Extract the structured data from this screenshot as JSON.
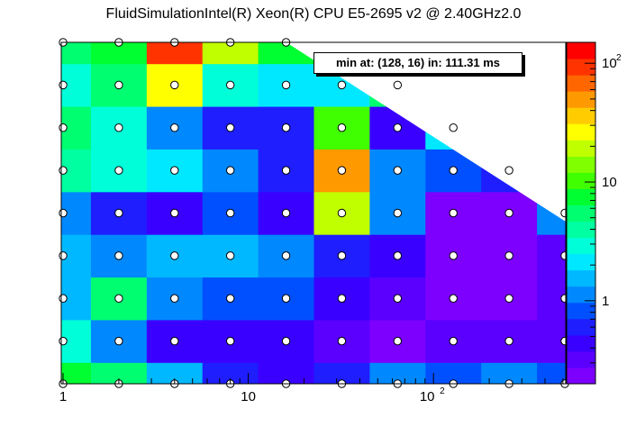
{
  "chart_data": {
    "type": "heatmap",
    "title": "FluidSimulationIntel(R) Xeon(R) CPU E5-2695 v2 @ 2.40GHz2.0",
    "xlabel": "",
    "ylabel": "",
    "x_scale": "log",
    "x_ticks": [
      "1",
      "10",
      "10^2"
    ],
    "x": [
      1,
      2,
      4,
      8,
      16,
      32,
      64,
      128,
      256,
      512
    ],
    "y_rows": 9,
    "z_scale": "log",
    "z_range": [
      0.2,
      150
    ],
    "z_ticks": [
      "1",
      "10",
      "10^2"
    ],
    "palette": [
      "#7d00ff",
      "#5b00ff",
      "#3a00ff",
      "#1e1eff",
      "#0050ff",
      "#0088ff",
      "#00b8ff",
      "#00e8ff",
      "#00ffd8",
      "#00ffa0",
      "#00ff70",
      "#00ff30",
      "#40ff00",
      "#80ff00",
      "#c0ff00",
      "#ffff00",
      "#ffcc00",
      "#ff9900",
      "#ff6600",
      "#ff3300",
      "#ff0000"
    ],
    "values": [
      [
        8,
        5,
        1.5,
        0.6,
        0.4,
        0.6,
        1.2,
        0.9,
        1.0,
        0.8
      ],
      [
        3,
        1.3,
        0.5,
        0.4,
        0.4,
        0.3,
        0.25,
        0.3,
        0.3,
        0.3
      ],
      [
        1.5,
        5,
        1.0,
        0.8,
        0.9,
        0.4,
        0.3,
        0.25,
        0.25,
        0.3
      ],
      [
        1.5,
        1.0,
        1.6,
        1.4,
        1.2,
        0.7,
        0.4,
        0.25,
        0.22,
        0.3
      ],
      [
        1.2,
        0.7,
        0.4,
        0.9,
        0.5,
        20,
        1.0,
        0.25,
        0.24,
        1.2
      ],
      [
        4,
        3,
        2.0,
        1.1,
        0.6,
        50,
        1.3,
        0.8,
        0.7,
        null
      ],
      [
        5,
        3,
        1.2,
        0.6,
        0.6,
        10,
        0.4,
        2,
        null,
        null
      ],
      [
        2.5,
        5,
        25,
        3,
        2,
        2,
        6,
        null,
        null,
        null
      ],
      [
        6,
        8,
        100,
        20,
        8,
        null,
        null,
        null,
        null,
        null
      ]
    ],
    "min_annotation": "min at: (128, 16) in: 111.31 ms"
  }
}
